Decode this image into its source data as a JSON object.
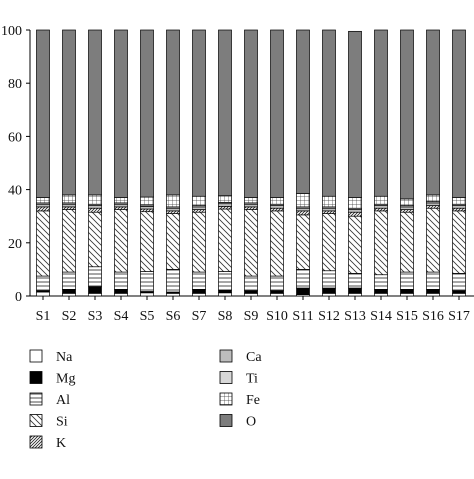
{
  "chart_data": {
    "type": "bar",
    "stacked": true,
    "title": "",
    "xlabel": "",
    "ylabel": "",
    "ylim": [
      0,
      100
    ],
    "yticks": [
      0,
      20,
      40,
      60,
      80,
      100
    ],
    "categories": [
      "S1",
      "S2",
      "S3",
      "S4",
      "S5",
      "S6",
      "S7",
      "S8",
      "S9",
      "S10",
      "S11",
      "S12",
      "S13",
      "S14",
      "S15",
      "S16",
      "S17"
    ],
    "series": [
      {
        "name": "Na",
        "pattern": "white",
        "values": [
          1.5,
          1.0,
          1.0,
          1.0,
          1.2,
          1.0,
          1.0,
          1.2,
          1.0,
          1.0,
          0.5,
          1.0,
          1.0,
          1.0,
          1.0,
          1.0,
          1.0
        ]
      },
      {
        "name": "Mg",
        "pattern": "black",
        "values": [
          0.5,
          1.5,
          2.5,
          1.5,
          0.5,
          0.5,
          1.5,
          1.0,
          1.0,
          1.0,
          2.5,
          2.0,
          2.0,
          1.5,
          1.5,
          1.5,
          1.0
        ]
      },
      {
        "name": "Al",
        "pattern": "horizontal-lines",
        "values": [
          5.5,
          6.5,
          7.5,
          6.5,
          7.5,
          8.5,
          6.5,
          7.0,
          5.5,
          5.5,
          7.0,
          6.5,
          5.5,
          5.5,
          6.5,
          6.5,
          6.5
        ]
      },
      {
        "name": "Si",
        "pattern": "diagonal-lines",
        "values": [
          24.5,
          23.5,
          20.5,
          23.5,
          22.5,
          21.0,
          22.5,
          23.5,
          25.0,
          24.5,
          20.5,
          21.5,
          21.5,
          24.0,
          22.5,
          24.0,
          23.5
        ]
      },
      {
        "name": "K",
        "pattern": "dense-diagonal",
        "values": [
          1.5,
          1.0,
          1.5,
          1.0,
          1.0,
          1.0,
          1.0,
          1.0,
          1.0,
          1.0,
          1.5,
          1.0,
          1.5,
          1.0,
          1.0,
          1.0,
          1.0
        ]
      },
      {
        "name": "Ca",
        "pattern": "light-gray",
        "values": [
          1.0,
          1.0,
          1.0,
          1.0,
          1.0,
          1.0,
          1.0,
          1.0,
          1.0,
          1.0,
          1.0,
          1.0,
          1.0,
          1.0,
          1.0,
          1.0,
          1.0
        ]
      },
      {
        "name": "Ti",
        "pattern": "lighter-gray",
        "values": [
          0.5,
          0.5,
          0.5,
          0.5,
          0.5,
          0.5,
          0.5,
          0.5,
          0.5,
          0.5,
          0.5,
          0.5,
          0.5,
          0.5,
          0.5,
          0.5,
          0.5
        ]
      },
      {
        "name": "Fe",
        "pattern": "grid",
        "values": [
          2.0,
          3.0,
          3.5,
          2.0,
          3.0,
          4.5,
          3.5,
          2.5,
          2.0,
          2.5,
          5.0,
          4.0,
          4.0,
          3.0,
          2.5,
          2.5,
          2.5
        ]
      },
      {
        "name": "O",
        "pattern": "dark-gray",
        "values": [
          63.0,
          62.0,
          62.0,
          63.0,
          62.8,
          62.0,
          62.5,
          62.3,
          63.0,
          63.0,
          61.5,
          62.5,
          62.5,
          62.5,
          63.5,
          62.0,
          63.0
        ]
      }
    ],
    "legend_position": "bottom",
    "grid": false
  }
}
